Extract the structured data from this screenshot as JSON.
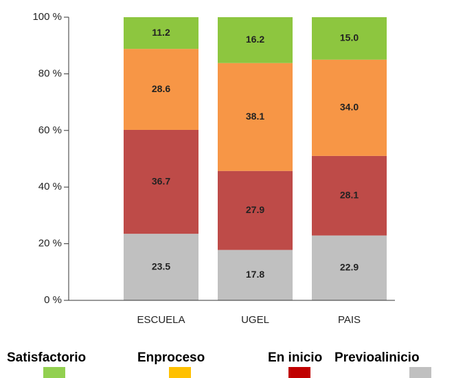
{
  "chart_data": {
    "type": "stacked_bar",
    "categories": [
      "ESCUELA",
      "UGEL",
      "PAIS"
    ],
    "series": [
      {
        "name": "Previoalinicio",
        "color": "#c0c0c0",
        "legend_color": "#c0c0c0",
        "values": [
          23.5,
          17.8,
          22.9
        ],
        "value_labels": [
          "23.5",
          "17.8",
          "22.9"
        ]
      },
      {
        "name": "En inicio",
        "color": "#be4b48",
        "legend_color": "#c00000",
        "values": [
          36.7,
          27.9,
          28.1
        ],
        "value_labels": [
          "36.7",
          "27.9",
          "28.1"
        ]
      },
      {
        "name": "Enproceso",
        "color": "#f79646",
        "legend_color": "#ffc000",
        "values": [
          28.6,
          38.1,
          34.0
        ],
        "value_labels": [
          "28.6",
          "38.1",
          "34.0"
        ]
      },
      {
        "name": "Satisfactorio",
        "color": "#8dc63f",
        "legend_color": "#92d050",
        "values": [
          11.2,
          16.2,
          15.0
        ],
        "value_labels": [
          "11.2",
          "16.2",
          "15.0"
        ]
      }
    ],
    "ylim": [
      0,
      100
    ],
    "yticks": [
      {
        "value": 0,
        "label": "0 %"
      },
      {
        "value": 20,
        "label": "20 %"
      },
      {
        "value": 40,
        "label": "40 %"
      },
      {
        "value": 60,
        "label": "60 %"
      },
      {
        "value": 80,
        "label": "80 %"
      },
      {
        "value": 100,
        "label": "100 %"
      }
    ],
    "grid": false
  }
}
